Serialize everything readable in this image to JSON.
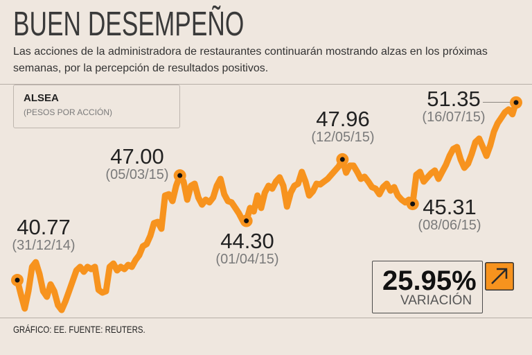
{
  "chart_data": {
    "type": "line",
    "title": "BUEN DESEMPEÑO",
    "subtitle": [
      "Las acciones de la administradora de restaurantes continuarán mostrando alzas en los próximas",
      "semanas, por la percepción de resultados positivos."
    ],
    "xlabel": "",
    "ylabel": "(PESOS POR ACCIÓN)",
    "series": [
      {
        "name": "ALSEA",
        "values": [
          40.77,
          39.9,
          39.08,
          40.11,
          41.56,
          41.84,
          41.14,
          40.11,
          39.78,
          40.52,
          40.11,
          39.28,
          38.99,
          39.49,
          40.11,
          40.73,
          41.35,
          41.56,
          41.27,
          41.56,
          41.43,
          41.56,
          40.19,
          40.03,
          40.11,
          41.56,
          41.76,
          41.35,
          41.56,
          41.43,
          41.68,
          41.56,
          41.97,
          42.26,
          42.79,
          42.92,
          43.41,
          44.16,
          44.24,
          43.83,
          45.81,
          45.89,
          45.48,
          46.39,
          47.0,
          46.64,
          45.56,
          46.39,
          46.51,
          45.69,
          45.27,
          45.56,
          45.4,
          45.69,
          46.39,
          46.8,
          45.89,
          45.48,
          45.4,
          45.07,
          44.74,
          44.32,
          44.3,
          45.07,
          44.86,
          45.81,
          45.07,
          45.98,
          46.39,
          46.22,
          46.64,
          46.89,
          46.39,
          45.15,
          45.98,
          46.39,
          46.51,
          47.22,
          46.64,
          45.81,
          46.06,
          46.51,
          46.47,
          46.64,
          46.8,
          47.05,
          47.3,
          47.55,
          47.96,
          47.17,
          47.59,
          47.59,
          47.22,
          46.8,
          46.93,
          46.64,
          46.31,
          46.22,
          45.89,
          46.31,
          46.51,
          46.1,
          46.31,
          45.81,
          45.56,
          45.4,
          45.56,
          45.31,
          47.05,
          47.22,
          46.64,
          46.89,
          47.13,
          47.3,
          46.8,
          47.22,
          47.63,
          48.17,
          48.58,
          48.7,
          47.96,
          47.46,
          47.71,
          48.29,
          48.99,
          49.2,
          48.7,
          48.17,
          48.79,
          49.61,
          50.11,
          50.44,
          50.77,
          50.94,
          50.65,
          51.35
        ]
      }
    ],
    "xlim": [
      0,
      135
    ],
    "ylim": [
      38.5,
      52.5
    ],
    "grid": false,
    "legend": "top-left",
    "annotations": [
      {
        "x": 0,
        "y": 40.77,
        "label": "40.77",
        "date": "(31/12/14)"
      },
      {
        "x": 44,
        "y": 47.0,
        "label": "47.00",
        "date": "(05/03/15)"
      },
      {
        "x": 62,
        "y": 44.3,
        "label": "44.30",
        "date": "(01/04/15)"
      },
      {
        "x": 88,
        "y": 47.96,
        "label": "47.96",
        "date": "(12/05/15)"
      },
      {
        "x": 107,
        "y": 45.31,
        "label": "45.31",
        "date": "(08/06/15)"
      },
      {
        "x": 135,
        "y": 51.35,
        "label": "51.35",
        "date": "(16/07/15)"
      }
    ]
  },
  "variation": {
    "value": "25.95%",
    "label": "VARIACIÓN",
    "icon": "arrow-up-right-icon"
  },
  "footer": {
    "source": "GRÁFICO: EE. FUENTE: REUTERS."
  },
  "colors": {
    "background": "#efe7df",
    "line": "#f7931e",
    "marker": "#111111",
    "text": "#2b2b2b",
    "muted": "#7a7a7a"
  }
}
